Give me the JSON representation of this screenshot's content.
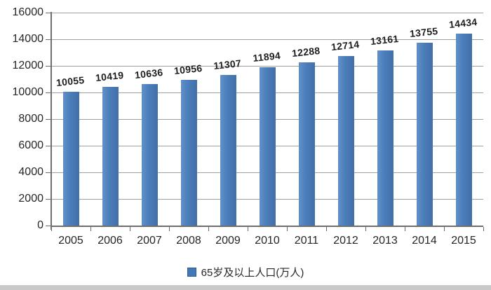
{
  "chart_data": {
    "type": "bar",
    "title": "",
    "categories": [
      "2005",
      "2006",
      "2007",
      "2008",
      "2009",
      "2010",
      "2011",
      "2012",
      "2013",
      "2014",
      "2015"
    ],
    "values": [
      10055,
      10419,
      10636,
      10956,
      11307,
      11894,
      12288,
      12714,
      13161,
      13755,
      14434
    ],
    "series": [
      {
        "name": "65岁及以上人口(万人)",
        "values": [
          10055,
          10419,
          10636,
          10956,
          11307,
          11894,
          12288,
          12714,
          13161,
          13755,
          14434
        ]
      }
    ],
    "data_labels_shown": true,
    "xlabel": "",
    "ylabel": "",
    "ylim": [
      0,
      16000
    ],
    "ytick_step": 2000,
    "yticks": [
      0,
      2000,
      4000,
      6000,
      8000,
      10000,
      12000,
      14000,
      16000
    ],
    "grid": "horizontal",
    "legend": {
      "label": "65岁及以上人口(万人)",
      "position": "bottom"
    },
    "colors": {
      "bar": "#4a7db8",
      "gridline": "#9f9f9f",
      "axis": "#6e6e6e",
      "text": "#262626",
      "bottom_strip": "#c9c9c9"
    }
  }
}
